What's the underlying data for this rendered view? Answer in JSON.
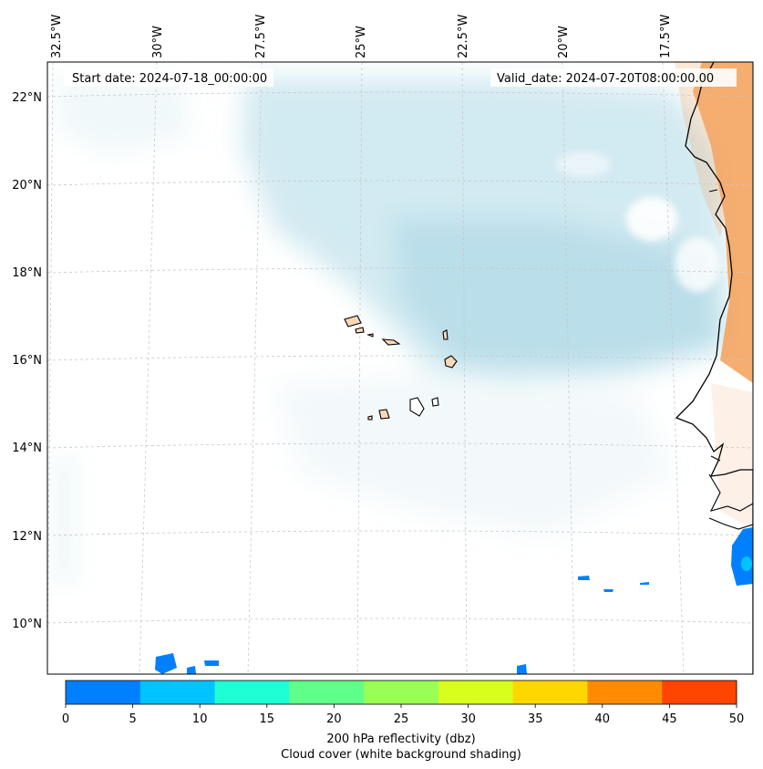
{
  "header": {
    "start_date": "Start date: 2024-07-18_00:00:00",
    "valid_date": "Valid_date: 2024-07-20T08:00:00.00"
  },
  "longitude_labels": [
    "32.5°W",
    "30°W",
    "27.5°W",
    "25°W",
    "22.5°W",
    "20°W",
    "17.5°W"
  ],
  "latitude_labels": [
    "22°N",
    "20°N",
    "18°N",
    "16°N",
    "14°N",
    "12°N",
    "10°N"
  ],
  "colorbar": {
    "label_line1": "200 hPa reflectivity (dbz)",
    "label_line2": "Cloud cover (white background shading)",
    "ticks": [
      "0",
      "5",
      "10",
      "15",
      "20",
      "25",
      "30",
      "35",
      "40",
      "45",
      "50"
    ],
    "colors": [
      "#0080ff",
      "#00c4ff",
      "#1effd5",
      "#60ff8a",
      "#9aff55",
      "#d8ff1c",
      "#ffd700",
      "#ff8c00",
      "#ff4500"
    ]
  },
  "colors": {
    "cloud": "#add8e6",
    "dust": "#f4a460",
    "land": "#fbd8b8",
    "grid": "#cccccc",
    "coast": "#000000"
  },
  "chart_data": {
    "type": "map",
    "title": "",
    "lon_range": [
      -32.5,
      -15.5
    ],
    "lat_range": [
      9,
      23
    ],
    "fields": [
      "200 hPa reflectivity (dbz)",
      "Cloud cover"
    ]
  }
}
